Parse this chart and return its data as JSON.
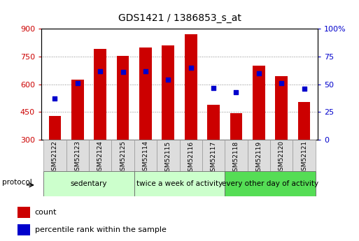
{
  "title": "GDS1421 / 1386853_s_at",
  "samples": [
    "GSM52122",
    "GSM52123",
    "GSM52124",
    "GSM52125",
    "GSM52114",
    "GSM52115",
    "GSM52116",
    "GSM52117",
    "GSM52118",
    "GSM52119",
    "GSM52120",
    "GSM52121"
  ],
  "counts": [
    430,
    625,
    790,
    755,
    800,
    810,
    870,
    490,
    445,
    700,
    645,
    505
  ],
  "percentiles": [
    37,
    51,
    62,
    61,
    62,
    54,
    65,
    47,
    43,
    60,
    51,
    46
  ],
  "ylim_left": [
    300,
    900
  ],
  "ylim_right": [
    0,
    100
  ],
  "yticks_left": [
    300,
    450,
    600,
    750,
    900
  ],
  "yticks_right": [
    0,
    25,
    50,
    75,
    100
  ],
  "bar_color": "#cc0000",
  "dot_color": "#0000cc",
  "group_boundaries": [
    [
      0,
      4,
      "sedentary",
      "#ccffcc"
    ],
    [
      4,
      8,
      "twice a week of activity",
      "#ccffcc"
    ],
    [
      8,
      12,
      "every other day of activity",
      "#55dd55"
    ]
  ],
  "protocol_label": "protocol",
  "legend_count": "count",
  "legend_pct": "percentile rank within the sample",
  "tick_label_color_left": "#cc0000",
  "tick_label_color_right": "#0000cc",
  "grid_color": "#888888",
  "sample_col_color": "#dddddd",
  "plot_bg": "#ffffff"
}
